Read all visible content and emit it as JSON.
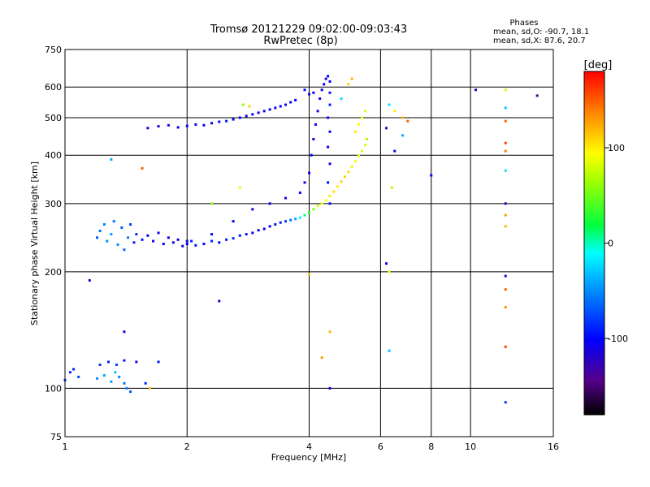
{
  "header": {
    "title": "Tromsø 20121229 09:02:00-09:03:43",
    "subtitle": "RwPretec (8p)",
    "phase_heading": "Phases",
    "phase_o": "mean, sd,O: -90.7, 18.1",
    "phase_x": "mean, sd,X:  87.6, 20.7"
  },
  "colorbar": {
    "unit": "[deg]",
    "range": [
      -180,
      180
    ],
    "ticks": [
      {
        "value": 100,
        "label": "100"
      },
      {
        "value": 0,
        "label": "0"
      },
      {
        "value": -100,
        "label": "-100"
      }
    ]
  },
  "chart_data": {
    "type": "scatter",
    "title": "Tromsø 20121229 09:02:00-09:03:43",
    "subtitle": "RwPretec (8p)",
    "xlabel": "Frequency [MHz]",
    "ylabel": "Stationary phase Virtual Height [km]",
    "x_scale": "log",
    "y_scale": "log",
    "xlim": [
      1,
      16
    ],
    "ylim": [
      75,
      750
    ],
    "grid": true,
    "x_ticks": [
      {
        "value": 1,
        "label": "1"
      },
      {
        "value": 2,
        "label": "2"
      },
      {
        "value": 4,
        "label": "4"
      },
      {
        "value": 6,
        "label": "6"
      },
      {
        "value": 8,
        "label": "8"
      },
      {
        "value": 10,
        "label": "10"
      },
      {
        "value": 16,
        "label": "16"
      }
    ],
    "y_ticks": [
      {
        "value": 75,
        "label": "75"
      },
      {
        "value": 100,
        "label": "100"
      },
      {
        "value": 200,
        "label": "200"
      },
      {
        "value": 300,
        "label": "300"
      },
      {
        "value": 400,
        "label": "400"
      },
      {
        "value": 500,
        "label": "500"
      },
      {
        "value": 600,
        "label": "600"
      },
      {
        "value": 750,
        "label": "750"
      }
    ],
    "color_variable": "phase [deg]",
    "points": [
      [
        1.0,
        105,
        -80
      ],
      [
        1.03,
        110,
        -85
      ],
      [
        1.05,
        112,
        -90
      ],
      [
        1.08,
        107,
        -75
      ],
      [
        1.2,
        106,
        -50
      ],
      [
        1.25,
        108,
        -40
      ],
      [
        1.3,
        104,
        -45
      ],
      [
        1.33,
        110,
        -30
      ],
      [
        1.36,
        107,
        -50
      ],
      [
        1.4,
        103,
        -60
      ],
      [
        1.42,
        100,
        -55
      ],
      [
        1.45,
        98,
        -70
      ],
      [
        1.22,
        115,
        -85
      ],
      [
        1.28,
        117,
        -90
      ],
      [
        1.34,
        115,
        -80
      ],
      [
        1.4,
        118,
        -95
      ],
      [
        1.5,
        117,
        -110
      ],
      [
        1.58,
        103,
        -90
      ],
      [
        1.62,
        100,
        115
      ],
      [
        1.7,
        117,
        -95
      ],
      [
        1.15,
        190,
        -120
      ],
      [
        1.4,
        140,
        -110
      ],
      [
        1.3,
        390,
        -40
      ],
      [
        1.55,
        370,
        150
      ],
      [
        1.2,
        245,
        -70
      ],
      [
        1.22,
        255,
        -60
      ],
      [
        1.25,
        265,
        -55
      ],
      [
        1.27,
        240,
        -50
      ],
      [
        1.3,
        250,
        -45
      ],
      [
        1.32,
        270,
        -60
      ],
      [
        1.35,
        235,
        -50
      ],
      [
        1.38,
        260,
        -70
      ],
      [
        1.4,
        228,
        -65
      ],
      [
        1.43,
        245,
        -55
      ],
      [
        1.45,
        265,
        -80
      ],
      [
        1.48,
        238,
        -90
      ],
      [
        1.5,
        250,
        -85
      ],
      [
        1.55,
        242,
        -95
      ],
      [
        1.6,
        248,
        -100
      ],
      [
        1.65,
        240,
        -105
      ],
      [
        1.7,
        252,
        -110
      ],
      [
        1.75,
        236,
        -100
      ],
      [
        1.8,
        245,
        -110
      ],
      [
        1.85,
        238,
        -115
      ],
      [
        1.9,
        242,
        -105
      ],
      [
        1.95,
        233,
        -110
      ],
      [
        2.0,
        236,
        -100
      ],
      [
        2.05,
        240,
        -90
      ],
      [
        2.1,
        234,
        -95
      ],
      [
        2.2,
        236,
        -100
      ],
      [
        2.3,
        240,
        -90
      ],
      [
        2.4,
        238,
        -95
      ],
      [
        2.5,
        242,
        -90
      ],
      [
        2.6,
        244,
        -85
      ],
      [
        2.7,
        248,
        -90
      ],
      [
        2.8,
        250,
        -95
      ],
      [
        2.9,
        252,
        -105
      ],
      [
        3.0,
        256,
        -110
      ],
      [
        3.1,
        258,
        -105
      ],
      [
        3.2,
        262,
        -100
      ],
      [
        3.3,
        265,
        -95
      ],
      [
        3.4,
        268,
        -90
      ],
      [
        3.5,
        270,
        -80
      ],
      [
        3.6,
        272,
        -60
      ],
      [
        3.7,
        274,
        -40
      ],
      [
        3.8,
        276,
        -10
      ],
      [
        3.9,
        280,
        10
      ],
      [
        4.0,
        284,
        30
      ],
      [
        4.1,
        290,
        60
      ],
      [
        4.2,
        296,
        80
      ],
      [
        4.3,
        300,
        90
      ],
      [
        4.4,
        306,
        95
      ],
      [
        4.5,
        314,
        100
      ],
      [
        4.6,
        322,
        105
      ],
      [
        4.7,
        332,
        100
      ],
      [
        4.8,
        342,
        110
      ],
      [
        4.9,
        352,
        110
      ],
      [
        5.0,
        362,
        105
      ],
      [
        5.1,
        374,
        100
      ],
      [
        5.2,
        386,
        95
      ],
      [
        5.3,
        398,
        90
      ],
      [
        5.4,
        410,
        85
      ],
      [
        5.5,
        425,
        80
      ],
      [
        5.55,
        440,
        70
      ],
      [
        5.2,
        460,
        100
      ],
      [
        5.3,
        480,
        95
      ],
      [
        5.4,
        500,
        90
      ],
      [
        5.5,
        520,
        85
      ],
      [
        5.0,
        610,
        110
      ],
      [
        5.1,
        630,
        120
      ],
      [
        4.8,
        560,
        -20
      ],
      [
        2.0,
        240,
        -110
      ],
      [
        2.3,
        250,
        -105
      ],
      [
        2.6,
        270,
        -100
      ],
      [
        2.9,
        290,
        -110
      ],
      [
        3.2,
        300,
        -105
      ],
      [
        3.5,
        310,
        -110
      ],
      [
        3.8,
        320,
        -100
      ],
      [
        3.9,
        340,
        -110
      ],
      [
        4.0,
        360,
        -105
      ],
      [
        4.05,
        400,
        -100
      ],
      [
        4.1,
        440,
        -110
      ],
      [
        4.15,
        480,
        -105
      ],
      [
        4.2,
        520,
        -110
      ],
      [
        4.25,
        560,
        -100
      ],
      [
        4.3,
        590,
        -105
      ],
      [
        4.35,
        610,
        -100
      ],
      [
        4.4,
        630,
        -110
      ],
      [
        4.45,
        640,
        -105
      ],
      [
        4.5,
        620,
        -100
      ],
      [
        4.5,
        580,
        -95
      ],
      [
        4.5,
        540,
        -90
      ],
      [
        4.45,
        500,
        -110
      ],
      [
        4.5,
        460,
        -100
      ],
      [
        4.45,
        420,
        -105
      ],
      [
        4.5,
        380,
        -110
      ],
      [
        4.45,
        340,
        -100
      ],
      [
        4.5,
        300,
        -95
      ],
      [
        1.6,
        470,
        -110
      ],
      [
        1.7,
        475,
        -115
      ],
      [
        1.8,
        478,
        -110
      ],
      [
        1.9,
        472,
        -105
      ],
      [
        2.0,
        476,
        -100
      ],
      [
        2.1,
        480,
        -110
      ],
      [
        2.2,
        478,
        -105
      ],
      [
        2.3,
        484,
        -110
      ],
      [
        2.4,
        488,
        -100
      ],
      [
        2.5,
        490,
        -95
      ],
      [
        2.6,
        495,
        -100
      ],
      [
        2.7,
        500,
        -105
      ],
      [
        2.8,
        505,
        -110
      ],
      [
        2.9,
        510,
        -100
      ],
      [
        3.0,
        515,
        -105
      ],
      [
        3.1,
        520,
        -110
      ],
      [
        3.2,
        525,
        -100
      ],
      [
        3.3,
        530,
        -105
      ],
      [
        3.4,
        535,
        -100
      ],
      [
        3.5,
        540,
        -110
      ],
      [
        3.6,
        548,
        -105
      ],
      [
        3.7,
        555,
        -100
      ],
      [
        2.85,
        535,
        110
      ],
      [
        2.75,
        540,
        60
      ],
      [
        4.1,
        580,
        -105
      ],
      [
        4.0,
        575,
        -110
      ],
      [
        3.9,
        590,
        -95
      ],
      [
        6.3,
        540,
        -20
      ],
      [
        6.5,
        520,
        100
      ],
      [
        6.8,
        500,
        120
      ],
      [
        7.0,
        490,
        150
      ],
      [
        6.5,
        410,
        -100
      ],
      [
        6.8,
        450,
        -40
      ],
      [
        6.2,
        470,
        -130
      ],
      [
        8.0,
        355,
        -100
      ],
      [
        6.4,
        330,
        70
      ],
      [
        6.2,
        210,
        -110
      ],
      [
        6.3,
        200,
        90
      ],
      [
        6.3,
        125,
        -30
      ],
      [
        4.0,
        197,
        110
      ],
      [
        4.5,
        140,
        120
      ],
      [
        4.3,
        120,
        130
      ],
      [
        4.5,
        100,
        -110
      ],
      [
        2.4,
        168,
        -110
      ],
      [
        2.7,
        330,
        100
      ],
      [
        2.3,
        300,
        60
      ],
      [
        10.3,
        590,
        -120
      ],
      [
        12.2,
        590,
        80
      ],
      [
        12.2,
        530,
        -30
      ],
      [
        12.2,
        490,
        150
      ],
      [
        12.2,
        430,
        160
      ],
      [
        12.2,
        410,
        140
      ],
      [
        12.2,
        365,
        -20
      ],
      [
        12.2,
        300,
        -130
      ],
      [
        12.2,
        280,
        130
      ],
      [
        12.2,
        262,
        120
      ],
      [
        12.2,
        195,
        -120
      ],
      [
        12.2,
        180,
        150
      ],
      [
        12.2,
        162,
        130
      ],
      [
        12.2,
        128,
        160
      ],
      [
        12.2,
        92,
        -80
      ],
      [
        14.6,
        570,
        -140
      ]
    ]
  }
}
